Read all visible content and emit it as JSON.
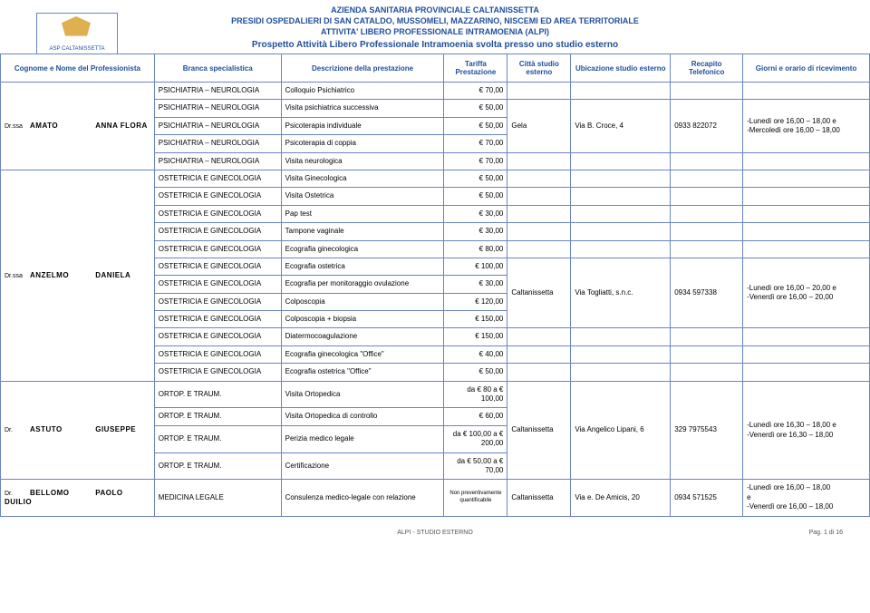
{
  "org": {
    "line1": "AZIENDA SANITARIA PROVINCIALE CALTANISSETTA",
    "line2": "PRESIDI OSPEDALIERI DI SAN CATALDO, MUSSOMELI, MAZZARINO, NISCEMI ED AREA TERRITORIALE",
    "line3": "ATTIVITA' LIBERO PROFESSIONALE INTRAMOENIA (ALPI)",
    "line4": "Prospetto Attività Libero Professionale Intramoenia svolta presso uno studio esterno",
    "logo_text": "ASP CALTANISSETTA"
  },
  "columns": {
    "c0": "Cognome e Nome del Professionista",
    "c1": "Branca specialistica",
    "c2": "Descrizione della prestazione",
    "c3": "Tariffa Prestazione",
    "c4": "Città studio esterno",
    "c5": "Ubicazione studio esterno",
    "c6": "Recapito Telefonico",
    "c7": "Giorni e orario di ricevimento"
  },
  "col_widths": [
    "170",
    "140",
    "180",
    "70",
    "70",
    "110",
    "80",
    "140"
  ],
  "groups": [
    {
      "title": "Dr.ssa",
      "last": "AMATO",
      "first": "ANNA FLORA",
      "citta": "Gela",
      "ubic": "Via B. Croce, 4",
      "tel": "0933 822072",
      "orari": "-Lunedì  ore 16,00 – 18,00         e\n-Mercoledì ore 16,00 – 18,00",
      "rows": [
        {
          "branca": "PSICHIATRIA – NEUROLOGIA",
          "prest": "Colloquio Psichiatrico",
          "tariffa": "€          70,00"
        },
        {
          "branca": "PSICHIATRIA – NEUROLOGIA",
          "prest": "Visita psichiatrica successiva",
          "tariffa": "€          50,00"
        },
        {
          "branca": "PSICHIATRIA – NEUROLOGIA",
          "prest": "Psicoterapia individuale",
          "tariffa": "€          50,00"
        },
        {
          "branca": "PSICHIATRIA – NEUROLOGIA",
          "prest": "Psicoterapia di coppia",
          "tariffa": "€          70,00"
        },
        {
          "branca": "PSICHIATRIA – NEUROLOGIA",
          "prest": "Visita neurologica",
          "tariffa": "€          70,00"
        }
      ]
    },
    {
      "title": "Dr.ssa",
      "last": "ANZELMO",
      "first": "DANIELA",
      "citta": "Caltanissetta",
      "ubic": "Via Togliatti, s.n.c.",
      "tel": "0934 597338",
      "orari": "-Lunedì  ore 16,00 – 20,00         e\n-Venerdì ore 16,00 – 20,00",
      "rows": [
        {
          "branca": "OSTETRICIA E GINECOLOGIA",
          "prest": "Visita Ginecologica",
          "tariffa": "€          50,00"
        },
        {
          "branca": "OSTETRICIA E GINECOLOGIA",
          "prest": "Visita Ostetrica",
          "tariffa": "€          50,00"
        },
        {
          "branca": "OSTETRICIA E GINECOLOGIA",
          "prest": "Pap test",
          "tariffa": "€          30,00"
        },
        {
          "branca": "OSTETRICIA E GINECOLOGIA",
          "prest": "Tampone vaginale",
          "tariffa": "€          30,00"
        },
        {
          "branca": "OSTETRICIA E GINECOLOGIA",
          "prest": "Ecografia ginecologica",
          "tariffa": "€          80,00"
        },
        {
          "branca": "OSTETRICIA E GINECOLOGIA",
          "prest": "Ecografia ostetrica",
          "tariffa": "€        100,00"
        },
        {
          "branca": "OSTETRICIA E GINECOLOGIA",
          "prest": "Ecografia per monitoraggio ovulazione",
          "tariffa": "€          30,00"
        },
        {
          "branca": "OSTETRICIA E GINECOLOGIA",
          "prest": "Colposcopia",
          "tariffa": "€        120,00"
        },
        {
          "branca": "OSTETRICIA E GINECOLOGIA",
          "prest": "Colposcopia + biopsia",
          "tariffa": "€        150,00"
        },
        {
          "branca": "OSTETRICIA E GINECOLOGIA",
          "prest": "Diatermocoagulazione",
          "tariffa": "€        150,00"
        },
        {
          "branca": "OSTETRICIA E GINECOLOGIA",
          "prest": "Ecografia ginecologica \"Office\"",
          "tariffa": "€          40,00"
        },
        {
          "branca": "OSTETRICIA E GINECOLOGIA",
          "prest": "Ecografia ostetrica \"Office\"",
          "tariffa": "€          50,00"
        }
      ]
    },
    {
      "title": "Dr.",
      "last": "ASTUTO",
      "first": "GIUSEPPE",
      "citta": "Caltanissetta",
      "ubic": "Via Angelico Lipani, 6",
      "tel": "329 7975543",
      "orari": "-Lunedì  ore 16,30 – 18,00         e\n-Venerdì ore 16,30 – 18,00",
      "rows": [
        {
          "branca": "ORTOP. E TRAUM.",
          "prest": "Visita Ortopedica",
          "tariffa": "da €  80  a € 100,00"
        },
        {
          "branca": "ORTOP. E TRAUM.",
          "prest": "Visita Ortopedica di controllo",
          "tariffa": "€          60,00"
        },
        {
          "branca": "ORTOP. E TRAUM.",
          "prest": "Perizia medico legale",
          "tariffa": "da € 100,00 a € 200,00"
        },
        {
          "branca": "ORTOP. E TRAUM.",
          "prest": "Certificazione",
          "tariffa": "da € 50,00 a € 70,00"
        }
      ]
    },
    {
      "title": "Dr.",
      "last": "BELLOMO",
      "first": "PAOLO DUILIO",
      "citta": "Caltanissetta",
      "ubic": "Via e. De Amicis, 20",
      "tel": "0934 571525",
      "orari": "-Lunedì ore 16,00 – 18,00\ne\n-Venerdì ore 16,00 – 18,00",
      "rows": [
        {
          "branca": "MEDICINA LEGALE",
          "prest": "Consulenza medico-legale con relazione",
          "tariffa": "Non preventivamente quantificabile",
          "tariffa_small": true
        }
      ]
    }
  ],
  "span_layout": [
    {
      "name_span": [
        0,
        5
      ],
      "info_span": [
        1,
        3
      ]
    },
    {
      "name_span": [
        0,
        12
      ],
      "info_span": [
        5,
        4
      ]
    },
    {
      "name_span": [
        0,
        4
      ],
      "info_span": [
        0,
        4
      ]
    },
    {
      "name_span": [
        0,
        1
      ],
      "info_span": [
        0,
        1
      ]
    }
  ],
  "footer": {
    "center": "ALPI - STUDIO ESTERNO",
    "right": "Pag. 1 di 16"
  },
  "colors": {
    "border": "#6b85c2",
    "heading": "#1f4e9c"
  }
}
